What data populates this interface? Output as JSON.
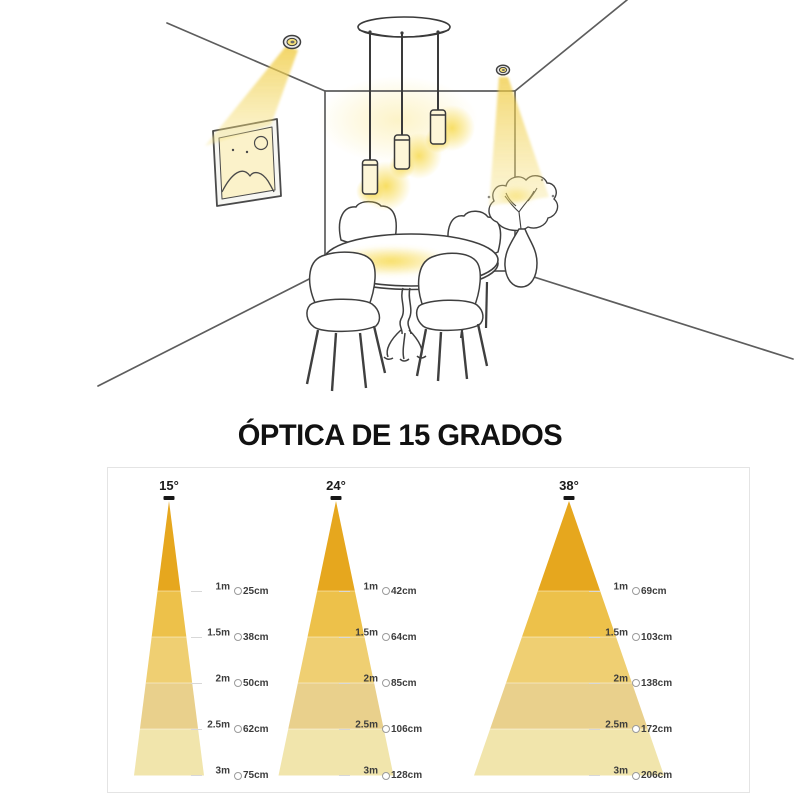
{
  "optics": {
    "title": "ÓPTICA DE 15 GRADOS",
    "band_colors": [
      "#E6A71E",
      "#EDC14A",
      "#EFCF72",
      "#E9D08C",
      "#F1E5AC"
    ],
    "separator_color": "rgba(255,255,255,0.45)",
    "fixture_color": "#171717",
    "label_text_color": "#3c3c3c",
    "cones": [
      {
        "angle": "15°",
        "rows": [
          {
            "distance": "1m",
            "diameter": "25cm"
          },
          {
            "distance": "1.5m",
            "diameter": "38cm"
          },
          {
            "distance": "2m",
            "diameter": "50cm"
          },
          {
            "distance": "2.5m",
            "diameter": "62cm"
          },
          {
            "distance": "3m",
            "diameter": "75cm"
          }
        ]
      },
      {
        "angle": "24°",
        "rows": [
          {
            "distance": "1m",
            "diameter": "42cm"
          },
          {
            "distance": "1.5m",
            "diameter": "64cm"
          },
          {
            "distance": "2m",
            "diameter": "85cm"
          },
          {
            "distance": "2.5m",
            "diameter": "106cm"
          },
          {
            "distance": "3m",
            "diameter": "128cm"
          }
        ]
      },
      {
        "angle": "38°",
        "rows": [
          {
            "distance": "1m",
            "diameter": "69cm"
          },
          {
            "distance": "1.5m",
            "diameter": "103cm"
          },
          {
            "distance": "2m",
            "diameter": "138cm"
          },
          {
            "distance": "2.5m",
            "diameter": "172cm"
          },
          {
            "distance": "3m",
            "diameter": "206cm"
          }
        ]
      }
    ]
  },
  "illustration": {
    "accent_glow_color": "#F6D63E",
    "beam_color": "#EFC93B",
    "line_color": "#555555"
  }
}
